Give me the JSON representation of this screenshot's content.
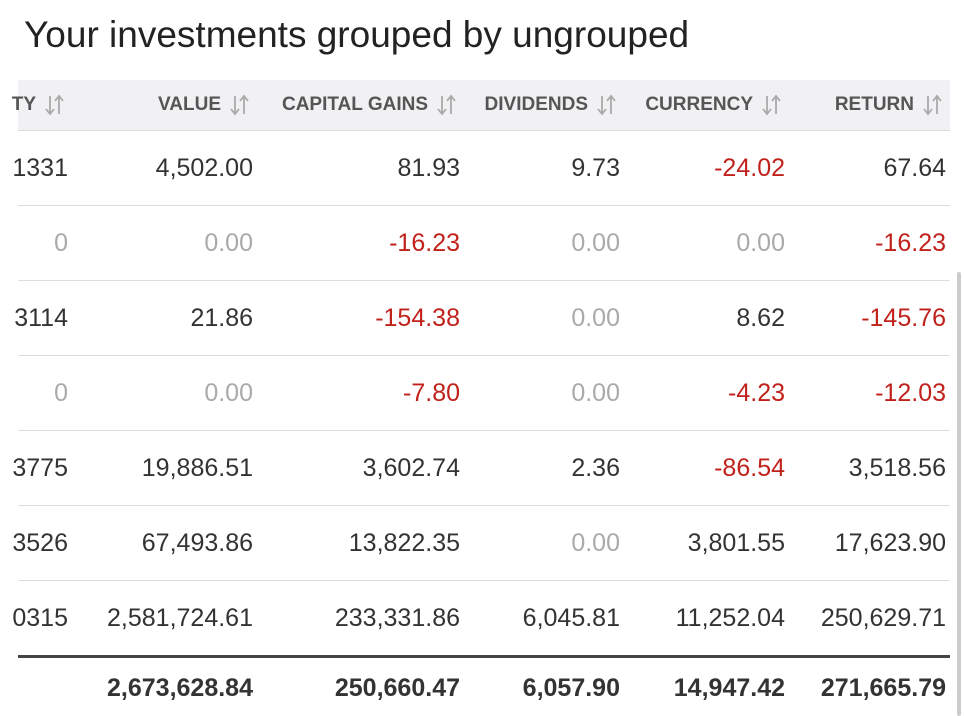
{
  "title": "Your investments grouped by ungrouped",
  "table": {
    "headers": [
      "TY",
      "VALUE",
      "CAPITAL GAINS",
      "DIVIDENDS",
      "CURRENCY",
      "RETURN"
    ],
    "rows": [
      [
        "1331",
        "4,502.00",
        "81.93",
        "9.73",
        "-24.02",
        "67.64"
      ],
      [
        "0",
        "0.00",
        "-16.23",
        "0.00",
        "0.00",
        "-16.23"
      ],
      [
        "3114",
        "21.86",
        "-154.38",
        "0.00",
        "8.62",
        "-145.76"
      ],
      [
        "0",
        "0.00",
        "-7.80",
        "0.00",
        "-4.23",
        "-12.03"
      ],
      [
        "3775",
        "19,886.51",
        "3,602.74",
        "2.36",
        "-86.54",
        "3,518.56"
      ],
      [
        "3526",
        "67,493.86",
        "13,822.35",
        "0.00",
        "3,801.55",
        "17,623.90"
      ],
      [
        "0315",
        "2,581,724.61",
        "233,331.86",
        "6,045.81",
        "11,252.04",
        "250,629.71"
      ]
    ],
    "totals": [
      "2,673,628.84",
      "250,660.47",
      "6,057.90",
      "14,947.42",
      "271,665.79"
    ]
  }
}
